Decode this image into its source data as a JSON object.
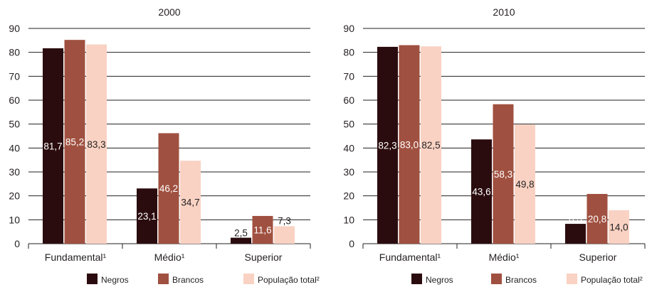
{
  "chart_data": [
    {
      "type": "bar",
      "title": "2000",
      "categories": [
        "Fundamental¹",
        "Médio¹",
        "Superior"
      ],
      "ylim": [
        0,
        90
      ],
      "yticks": [
        0,
        10,
        20,
        30,
        40,
        50,
        60,
        70,
        80,
        90
      ],
      "grid": true,
      "legend": "bottom",
      "series": [
        {
          "name": "Negros",
          "color": "#2b0c0e",
          "values": [
            81.7,
            23.1,
            2.5
          ],
          "labels": [
            "81,7",
            "23,1",
            "2,5"
          ]
        },
        {
          "name": "Brancos",
          "color": "#a05040",
          "values": [
            85.2,
            46.2,
            11.6
          ],
          "labels": [
            "85,2",
            "46,2",
            "11,6"
          ]
        },
        {
          "name": "População total²",
          "color": "#f9d2c3",
          "values": [
            83.3,
            34.7,
            7.3
          ],
          "labels": [
            "83,3",
            "34,7",
            "7,3"
          ]
        }
      ]
    },
    {
      "type": "bar",
      "title": "2010",
      "categories": [
        "Fundamental¹",
        "Médio¹",
        "Superior"
      ],
      "ylim": [
        0,
        90
      ],
      "yticks": [
        0,
        10,
        20,
        30,
        40,
        50,
        60,
        70,
        80,
        90
      ],
      "grid": true,
      "legend": "bottom",
      "series": [
        {
          "name": "Negros",
          "color": "#2b0c0e",
          "values": [
            82.3,
            43.6,
            8.3
          ],
          "labels": [
            "82,3",
            "43,6",
            "8,3"
          ]
        },
        {
          "name": "Brancos",
          "color": "#a05040",
          "values": [
            83.0,
            58.3,
            20.8
          ],
          "labels": [
            "83,0",
            "58,3",
            "20,8"
          ]
        },
        {
          "name": "População total²",
          "color": "#f9d2c3",
          "values": [
            82.5,
            49.8,
            14.0
          ],
          "labels": [
            "82,5",
            "49,8",
            "14,0"
          ]
        }
      ]
    }
  ]
}
